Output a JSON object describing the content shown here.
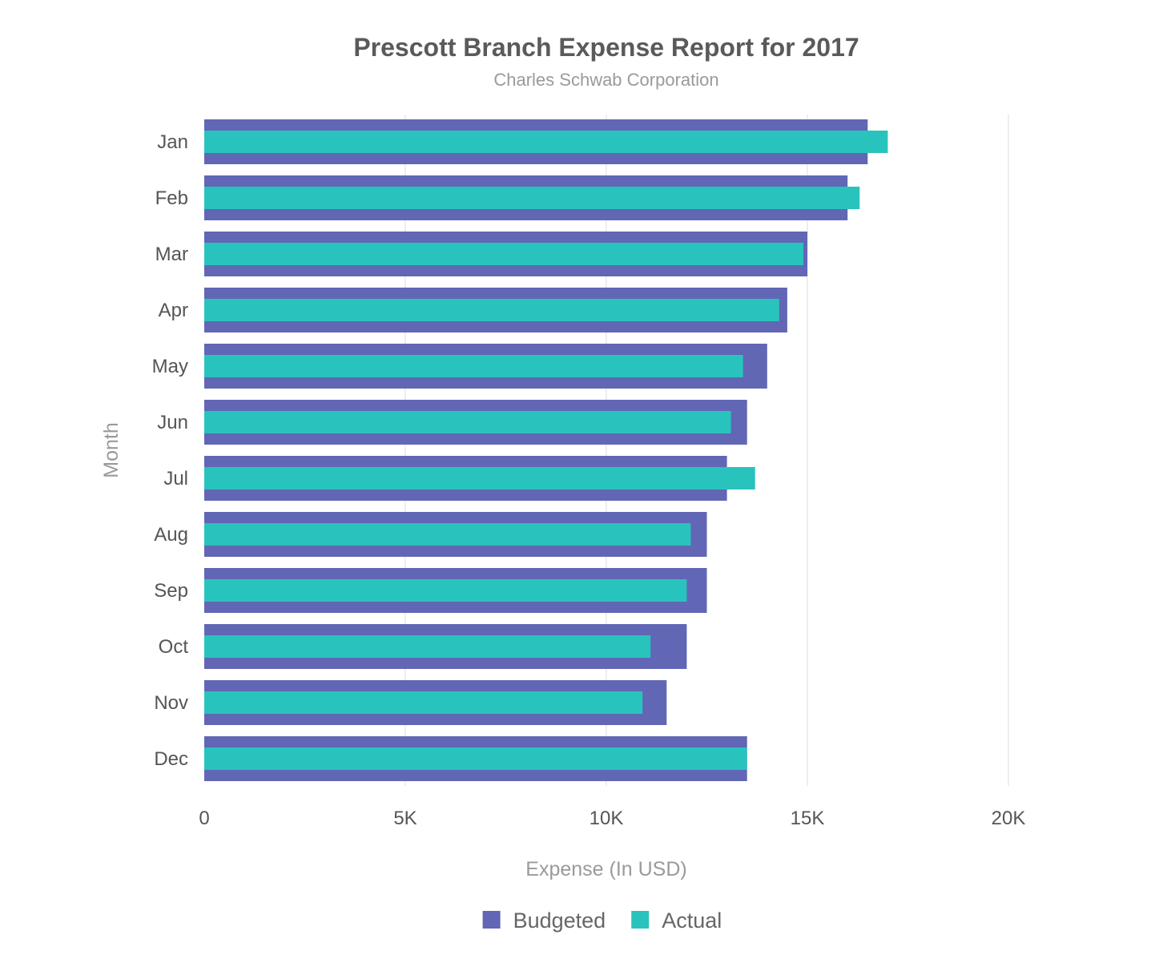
{
  "chart_data": {
    "type": "bar",
    "orientation": "horizontal",
    "title": "Prescott Branch Expense Report for 2017",
    "subtitle": "Charles Schwab Corporation",
    "xlabel": "Expense (In USD)",
    "ylabel": "Month",
    "categories": [
      "Jan",
      "Feb",
      "Mar",
      "Apr",
      "May",
      "Jun",
      "Jul",
      "Aug",
      "Sep",
      "Oct",
      "Nov",
      "Dec"
    ],
    "series": [
      {
        "name": "Budgeted",
        "color": "#6166b5",
        "values": [
          16500,
          16000,
          15000,
          14500,
          14000,
          13500,
          13000,
          12500,
          12500,
          12000,
          11500,
          13500
        ]
      },
      {
        "name": "Actual",
        "color": "#29c3be",
        "values": [
          17000,
          16300,
          14900,
          14300,
          13400,
          13100,
          13700,
          12100,
          12000,
          11100,
          10900,
          13500
        ]
      }
    ],
    "xlim": [
      0,
      20000
    ],
    "xticks": [
      0,
      5000,
      10000,
      15000,
      20000
    ],
    "xtick_labels": [
      "0",
      "5K",
      "10K",
      "15K",
      "20K"
    ],
    "grid": true,
    "legend_position": "bottom-center"
  }
}
